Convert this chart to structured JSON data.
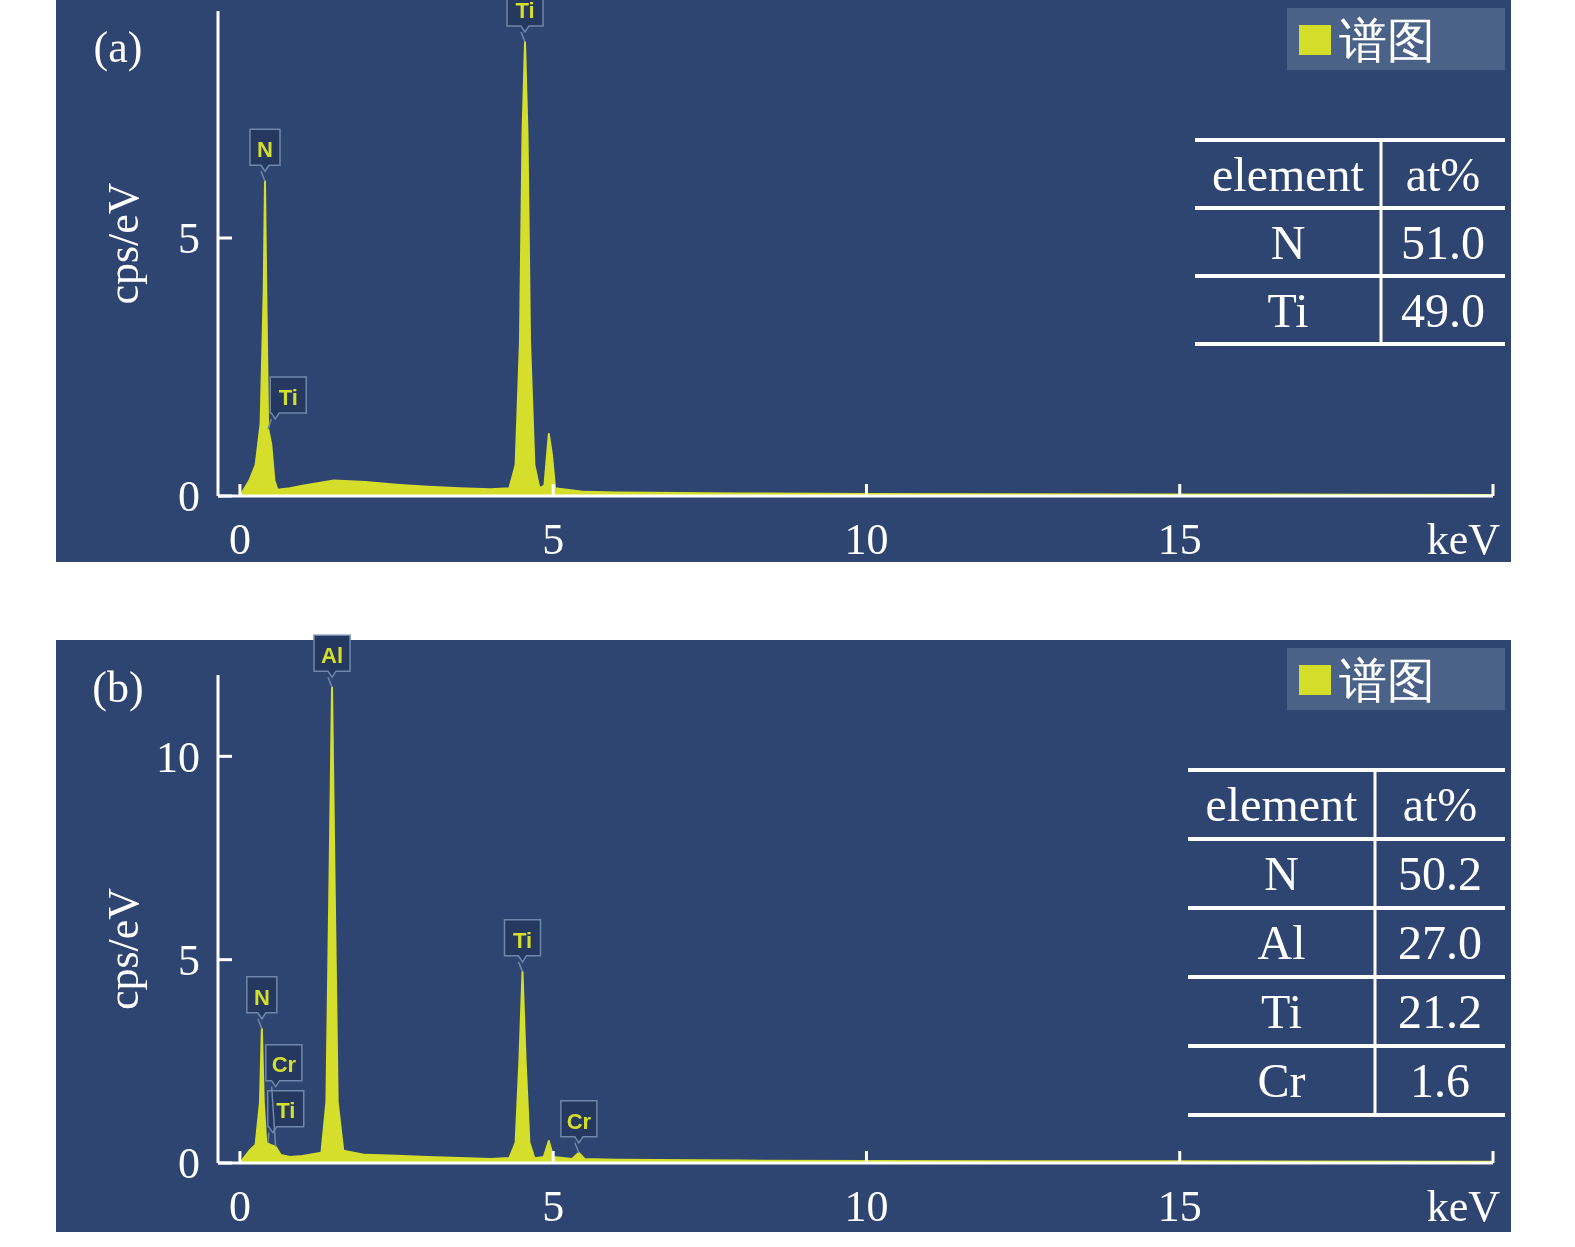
{
  "chart_data": [
    {
      "type": "area",
      "title": "(a)",
      "xlabel": "keV",
      "ylabel": "cps/eV",
      "legend": "top right",
      "x": [
        0,
        0.15,
        0.25,
        0.33,
        0.38,
        0.4,
        0.42,
        0.45,
        0.5,
        0.55,
        0.6,
        0.8,
        1.0,
        1.5,
        2.0,
        2.5,
        3.0,
        3.5,
        4.0,
        4.3,
        4.4,
        4.47,
        4.51,
        4.55,
        4.59,
        4.63,
        4.7,
        4.78,
        4.86,
        4.93,
        4.98,
        5.03,
        5.5,
        6,
        8,
        10,
        15,
        20
      ],
      "series": [
        {
          "name": "谱图",
          "color": "#d6de2c",
          "values": [
            0,
            0.3,
            0.6,
            1.4,
            4,
            6.1,
            4,
            1.3,
            1.0,
            0.3,
            0.12,
            0.15,
            0.2,
            0.3,
            0.27,
            0.22,
            0.18,
            0.15,
            0.13,
            0.15,
            0.6,
            3,
            7,
            8.8,
            7,
            3,
            0.6,
            0.15,
            0.2,
            1.2,
            0.8,
            0.15,
            0.08,
            0.07,
            0.05,
            0.04,
            0.03,
            0.02
          ]
        }
      ],
      "xlim": [
        -0.35,
        20
      ],
      "xticks": [
        0,
        5,
        10,
        15,
        {
          "value": 20,
          "label": null
        }
      ],
      "ylim": [
        0,
        9.4
      ],
      "yticks": [
        0,
        5
      ],
      "grid": false,
      "annotations": [
        {
          "text": "N",
          "x": 0.4,
          "y": 6.1
        },
        {
          "text": "Ti",
          "x": 0.45,
          "y": 1.3
        },
        {
          "text": "Ti",
          "x": 4.55,
          "y": 8.8
        },
        "element",
        "at%",
        "N",
        "51.0",
        "Ti",
        "49.0"
      ]
    },
    {
      "type": "area",
      "title": "(b)",
      "xlabel": "keV",
      "ylabel": "cps/eV",
      "legend": "top right",
      "x": [
        0,
        0.15,
        0.25,
        0.32,
        0.35,
        0.38,
        0.42,
        0.48,
        0.57,
        0.65,
        0.8,
        1.0,
        1.3,
        1.38,
        1.43,
        1.47,
        1.51,
        1.56,
        1.65,
        2.0,
        2.5,
        3.0,
        3.5,
        4.0,
        4.3,
        4.4,
        4.46,
        4.51,
        4.56,
        4.62,
        4.7,
        4.85,
        4.93,
        5.0,
        5.3,
        5.41,
        5.5,
        6,
        8,
        10,
        15,
        20
      ],
      "series": [
        {
          "name": "谱图",
          "color": "#d6de2c",
          "values": [
            0,
            0.3,
            0.45,
            1.5,
            3.3,
            1.5,
            0.5,
            0.45,
            0.4,
            0.2,
            0.15,
            0.17,
            0.25,
            1.5,
            7,
            11.7,
            7,
            1.5,
            0.3,
            0.2,
            0.18,
            0.15,
            0.12,
            0.1,
            0.12,
            0.5,
            2.5,
            4.7,
            2.5,
            0.5,
            0.12,
            0.15,
            0.54,
            0.15,
            0.1,
            0.25,
            0.1,
            0.08,
            0.06,
            0.05,
            0.04,
            0.03
          ]
        }
      ],
      "xlim": [
        -0.35,
        20
      ],
      "xticks": [
        0,
        5,
        10,
        15,
        {
          "value": 20,
          "label": null
        }
      ],
      "ylim": [
        0,
        12
      ],
      "yticks": [
        0,
        5,
        10
      ],
      "grid": false,
      "annotations": [
        {
          "text": "N",
          "x": 0.35,
          "y": 3.3
        },
        {
          "text": "Ti",
          "x": 0.45,
          "y": 0.5
        },
        {
          "text": "Cr",
          "x": 0.57,
          "y": 0.4
        },
        {
          "text": "Al",
          "x": 1.47,
          "y": 11.7
        },
        {
          "text": "Ti",
          "x": 4.51,
          "y": 4.7
        },
        {
          "text": "Cr",
          "x": 5.41,
          "y": 0.25
        },
        "element",
        "at%",
        "N",
        "50.2",
        "Al",
        "27.0",
        "Ti",
        "21.2",
        "Cr",
        "1.6"
      ]
    }
  ]
}
